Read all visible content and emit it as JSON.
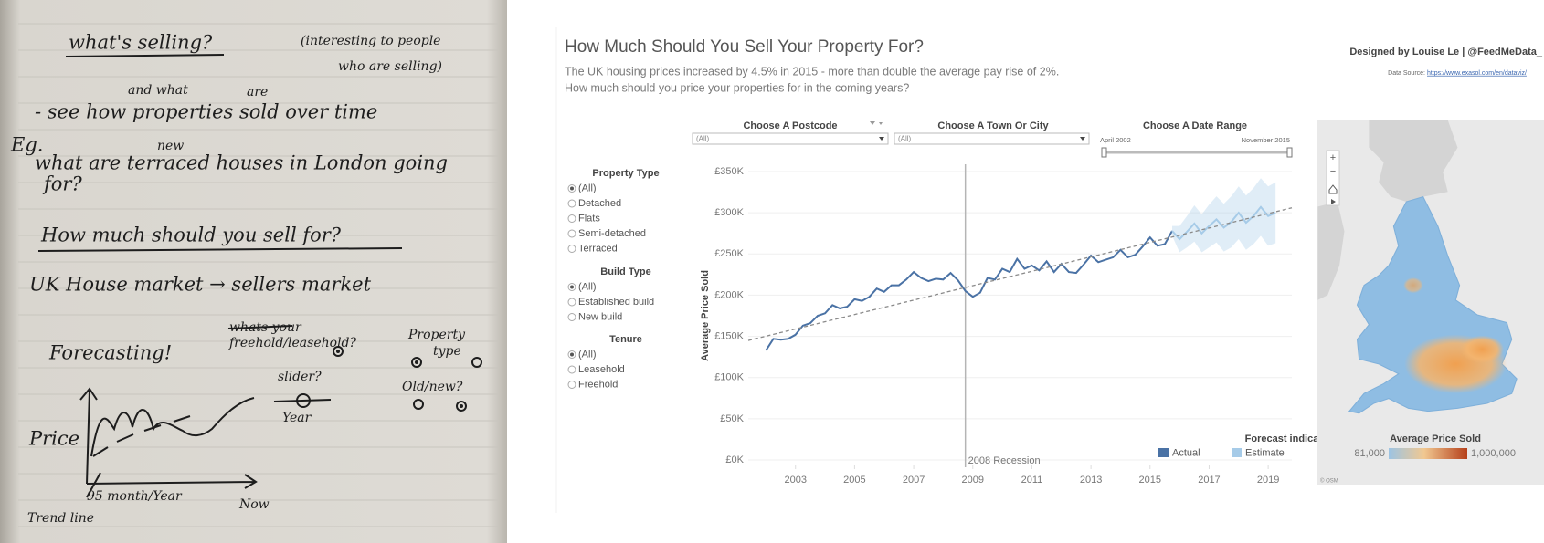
{
  "notebook": {
    "heading": "what's selling?",
    "aside": [
      "(interesting to people",
      "who are selling)"
    ],
    "insert_and_what": "and what",
    "insert_are": "are",
    "line_1": "- see how properties sold over time",
    "eg": "Eg.",
    "insert_new": "new",
    "line_2": [
      "what are terraced houses in London going",
      "for?"
    ],
    "question": "How much should you sell for?",
    "market": "UK House market → sellers market",
    "forecasting": "Forecasting!",
    "crossed": "whats your",
    "tenure": "freehold/leasehold?",
    "property_type": [
      "Property",
      "type"
    ],
    "slider": "slider?",
    "year": "Year",
    "old_new": "Old/new?",
    "price": "Price",
    "axis_note": "95 month/Year",
    "now": "Now",
    "trend": "Trend line"
  },
  "dashboard": {
    "title": "How Much Should You Sell Your Property For?",
    "subtitle": [
      "The UK housing prices increased by 4.5% in 2015 - more than double the average pay rise of 2%.",
      "How much should you price your properties for in the coming years?"
    ],
    "credit": "Designed by Louise Le | @FeedMeData_",
    "source_label": "Data Source:",
    "source_url": "https://www.exasol.com/en/dataviz/",
    "filters": {
      "postcode": {
        "label": "Choose A Postcode",
        "value": "(All)"
      },
      "town": {
        "label": "Choose A Town Or City",
        "value": "(All)"
      },
      "date_range": {
        "label": "Choose A Date Range",
        "start": "April 2002",
        "end": "November 2015"
      }
    },
    "panels": [
      {
        "title": "Property Type",
        "options": [
          "(All)",
          "Detached",
          "Flats",
          "Semi-detached",
          "Terraced"
        ]
      },
      {
        "title": "Build Type",
        "options": [
          "(All)",
          "Established build",
          "New build"
        ]
      },
      {
        "title": "Tenure",
        "options": [
          "(All)",
          "Leasehold",
          "Freehold"
        ]
      }
    ],
    "chart": {
      "type": "line",
      "y_label": "Average Price Sold",
      "xlim": [
        2001.4,
        2019.8
      ],
      "xticks": [
        2003,
        2005,
        2007,
        2009,
        2011,
        2013,
        2015,
        2017,
        2019
      ],
      "ylim": [
        0,
        350000
      ],
      "yticks": [
        {
          "value": 0,
          "label": "£0K"
        },
        {
          "value": 50000,
          "label": "£50K"
        },
        {
          "value": 100000,
          "label": "£100K"
        },
        {
          "value": 150000,
          "label": "£150K"
        },
        {
          "value": 200000,
          "label": "£200K"
        },
        {
          "value": 250000,
          "label": "£250K"
        },
        {
          "value": 300000,
          "label": "£300K"
        },
        {
          "value": 350000,
          "label": "£350K"
        }
      ],
      "grid": true,
      "legend_title": "Forecast indicator",
      "series": [
        {
          "name": "Actual",
          "color": "#4a72a5",
          "x": [
            2002,
            2002.25,
            2002.5,
            2002.75,
            2003,
            2003.25,
            2003.5,
            2003.75,
            2004,
            2004.25,
            2004.5,
            2004.75,
            2005,
            2005.25,
            2005.5,
            2005.75,
            2006,
            2006.25,
            2006.5,
            2006.75,
            2007,
            2007.25,
            2007.5,
            2007.75,
            2008,
            2008.25,
            2008.5,
            2008.75,
            2009,
            2009.25,
            2009.5,
            2009.75,
            2010,
            2010.25,
            2010.5,
            2010.75,
            2011,
            2011.25,
            2011.5,
            2011.75,
            2012,
            2012.25,
            2012.5,
            2012.75,
            2013,
            2013.25,
            2013.5,
            2013.75,
            2014,
            2014.25,
            2014.5,
            2014.75,
            2015,
            2015.25,
            2015.5,
            2015.75
          ],
          "values": [
            133000,
            147000,
            146000,
            147000,
            152000,
            163000,
            166000,
            175000,
            178000,
            188000,
            184000,
            186000,
            195000,
            193000,
            198000,
            208000,
            204000,
            212000,
            212000,
            219000,
            228000,
            221000,
            217000,
            220000,
            219000,
            227000,
            218000,
            205000,
            198000,
            203000,
            221000,
            219000,
            232000,
            228000,
            244000,
            232000,
            236000,
            230000,
            241000,
            228000,
            238000,
            228000,
            227000,
            237000,
            248000,
            240000,
            243000,
            246000,
            255000,
            246000,
            249000,
            259000,
            270000,
            260000,
            262000,
            278000
          ]
        },
        {
          "name": "Estimate",
          "color": "#a6cbe8",
          "x": [
            2015.75,
            2016,
            2016.25,
            2016.5,
            2016.75,
            2017,
            2017.25,
            2017.5,
            2017.75,
            2018,
            2018.25,
            2018.5,
            2018.75,
            2019,
            2019.25
          ],
          "values": [
            278000,
            268000,
            277000,
            287000,
            275000,
            284000,
            292000,
            282000,
            289000,
            300000,
            288000,
            296000,
            307000,
            296000,
            300000
          ],
          "low": [
            272000,
            252000,
            258000,
            265000,
            252000,
            258000,
            264000,
            253000,
            258000,
            268000,
            255000,
            262000,
            272000,
            260000,
            263000
          ],
          "high": [
            284000,
            284000,
            296000,
            309000,
            298000,
            310000,
            320000,
            311000,
            320000,
            332000,
            321000,
            330000,
            342000,
            332000,
            337000
          ]
        }
      ],
      "trend": {
        "color": "#8a8a8a",
        "x": [
          2001.4,
          2019.8
        ],
        "values": [
          145000,
          306000
        ]
      },
      "reference": {
        "x": 2008.75,
        "label": "2008 Recession"
      }
    },
    "map": {
      "legend_title": "Average Price Sold",
      "min": {
        "value": 81000,
        "label": "81,000"
      },
      "max": {
        "value": 1000000,
        "label": "1,000,000"
      },
      "attribution": "© OSM"
    }
  }
}
